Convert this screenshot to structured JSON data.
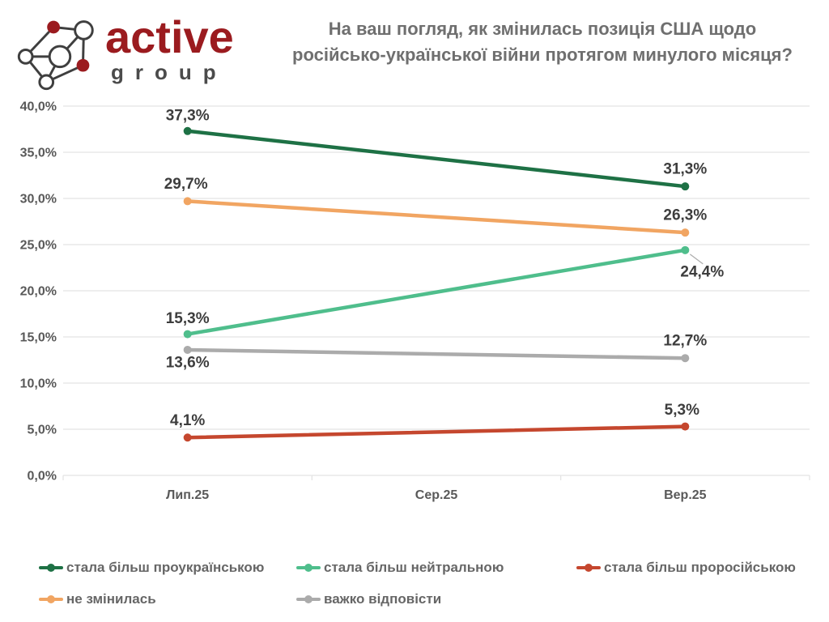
{
  "colors": {
    "brand_red": "#9B1B1F",
    "brand_dark": "#4B4B4B",
    "title_text": "#6F6F6F",
    "axis_text": "#595959",
    "data_label_text": "#3D3D3D",
    "legend_text": "#666666",
    "gridline": "#E4E4E4",
    "leader_line": "#ACACAC",
    "background": "#FFFFFF"
  },
  "header": {
    "logo_text_main": "active",
    "logo_text_sub": "group",
    "title_lines": [
      "На ваш погляд, як змінилась позиція США щодо",
      "російсько-української війни протягом минулого місяця?"
    ]
  },
  "chart_data": {
    "type": "line",
    "title": "На ваш погляд, як змінилась позиція США щодо російсько-української війни протягом минулого місяця?",
    "categories": [
      "Лип.25",
      "Сер.25",
      "Вер.25"
    ],
    "y_axis": {
      "min": 0,
      "max": 40,
      "tick_step": 5,
      "tick_labels": [
        "0,0%",
        "5,0%",
        "10,0%",
        "15,0%",
        "20,0%",
        "25,0%",
        "30,0%",
        "35,0%",
        "40,0%"
      ],
      "grid": true
    },
    "series": [
      {
        "name": "стала більш проукраїнською",
        "color": "#1E7145",
        "points": [
          {
            "category": "Лип.25",
            "value": 37.3,
            "label": "37,3%",
            "label_dx": 0,
            "label_dy": -20
          },
          {
            "category": "Вер.25",
            "value": 31.3,
            "label": "31,3%",
            "label_dx": 0,
            "label_dy": -22
          }
        ]
      },
      {
        "name": "не змінилась",
        "color": "#F1A562",
        "points": [
          {
            "category": "Лип.25",
            "value": 29.7,
            "label": "29,7%",
            "label_dx": -2,
            "label_dy": -22
          },
          {
            "category": "Вер.25",
            "value": 26.3,
            "label": "26,3%",
            "label_dx": 0,
            "label_dy": -22
          }
        ]
      },
      {
        "name": "стала більш нейтральною",
        "color": "#4FBE8C",
        "points": [
          {
            "category": "Лип.25",
            "value": 15.3,
            "label": "15,3%",
            "label_dx": 0,
            "label_dy": -20
          },
          {
            "category": "Вер.25",
            "value": 24.4,
            "label": "24,4%",
            "label_dx": 21,
            "label_dy": 26,
            "leader": true
          }
        ]
      },
      {
        "name": "важко відповісти",
        "color": "#ABABAB",
        "points": [
          {
            "category": "Лип.25",
            "value": 13.6,
            "label": "13,6%",
            "label_dx": 0,
            "label_dy": 15
          },
          {
            "category": "Вер.25",
            "value": 12.7,
            "label": "12,7%",
            "label_dx": 0,
            "label_dy": -22
          }
        ]
      },
      {
        "name": "стала більш проросійською",
        "color": "#C5472E",
        "points": [
          {
            "category": "Лип.25",
            "value": 4.1,
            "label": "4,1%",
            "label_dx": 0,
            "label_dy": -22
          },
          {
            "category": "Вер.25",
            "value": 5.3,
            "label": "5,3%",
            "label_dx": -4,
            "label_dy": -21
          }
        ]
      }
    ],
    "legend": {
      "position": "bottom",
      "rows": [
        [
          0,
          2,
          4
        ],
        [
          1,
          3
        ]
      ]
    }
  }
}
